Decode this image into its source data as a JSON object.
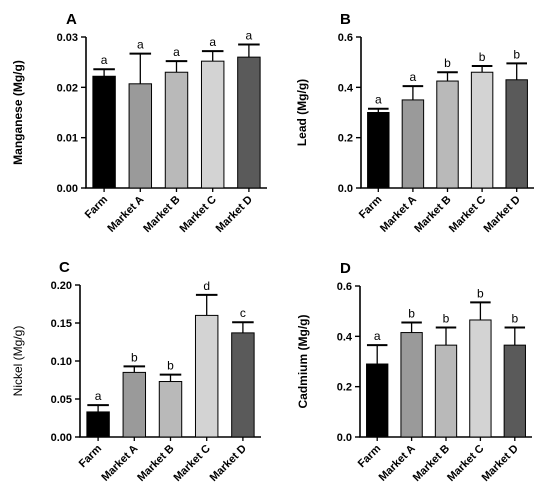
{
  "chart_data": [
    {
      "type": "bar",
      "panel": "A",
      "ylabel": "Manganese (Mg/g)",
      "categories": [
        "Farm",
        "Market A",
        "Market B",
        "Market C",
        "Market D"
      ],
      "values": [
        0.0222,
        0.0207,
        0.023,
        0.0252,
        0.026
      ],
      "errors": [
        0.0014,
        0.006,
        0.0022,
        0.002,
        0.0025
      ],
      "significance": [
        "a",
        "a",
        "a",
        "a",
        "a"
      ],
      "ylim": [
        0,
        0.03
      ],
      "yticks": [
        0,
        0.01,
        0.02,
        0.03
      ],
      "ytick_labels": [
        "0.00",
        "0.01",
        "0.02",
        "0.03"
      ],
      "colors": [
        "#000000",
        "#9a9a9a",
        "#b9b9b9",
        "#d3d3d3",
        "#5a5a5a"
      ]
    },
    {
      "type": "bar",
      "panel": "B",
      "ylabel": "Lead (Mg/g)",
      "categories": [
        "Farm",
        "Market A",
        "Market B",
        "Market C",
        "Market D"
      ],
      "values": [
        0.3,
        0.35,
        0.425,
        0.46,
        0.43
      ],
      "errors": [
        0.015,
        0.055,
        0.035,
        0.025,
        0.065
      ],
      "significance": [
        "a",
        "a",
        "b",
        "b",
        "b"
      ],
      "ylim": [
        0,
        0.6
      ],
      "yticks": [
        0,
        0.2,
        0.4,
        0.6
      ],
      "ytick_labels": [
        "0.0",
        "0.2",
        "0.4",
        "0.6"
      ],
      "colors": [
        "#000000",
        "#9a9a9a",
        "#b9b9b9",
        "#d3d3d3",
        "#5a5a5a"
      ]
    },
    {
      "type": "bar",
      "panel": "C",
      "ylabel": "Nickel (Mg/g)",
      "categories": [
        "Farm",
        "Market A",
        "Market B",
        "Market C",
        "Market D"
      ],
      "values": [
        0.033,
        0.085,
        0.073,
        0.16,
        0.137
      ],
      "errors": [
        0.009,
        0.008,
        0.009,
        0.027,
        0.014
      ],
      "significance": [
        "a",
        "b",
        "b",
        "d",
        "c"
      ],
      "ylim": [
        0,
        0.2
      ],
      "yticks": [
        0,
        0.05,
        0.1,
        0.15,
        0.2
      ],
      "ytick_labels": [
        "0.00",
        "0.05",
        "0.10",
        "0.15",
        "0.20"
      ],
      "colors": [
        "#000000",
        "#9a9a9a",
        "#b9b9b9",
        "#d3d3d3",
        "#5a5a5a"
      ]
    },
    {
      "type": "bar",
      "panel": "D",
      "ylabel": "Cadmium (Mg/g)",
      "categories": [
        "Farm",
        "Market A",
        "Market B",
        "Market C",
        "Market D"
      ],
      "values": [
        0.29,
        0.415,
        0.365,
        0.465,
        0.365
      ],
      "errors": [
        0.075,
        0.04,
        0.07,
        0.07,
        0.07
      ],
      "significance": [
        "a",
        "b",
        "b",
        "b",
        "b"
      ],
      "ylim": [
        0,
        0.6
      ],
      "yticks": [
        0,
        0.2,
        0.4,
        0.6
      ],
      "ytick_labels": [
        "0.0",
        "0.2",
        "0.4",
        "0.6"
      ],
      "colors": [
        "#000000",
        "#9a9a9a",
        "#b9b9b9",
        "#d3d3d3",
        "#5a5a5a"
      ]
    }
  ]
}
